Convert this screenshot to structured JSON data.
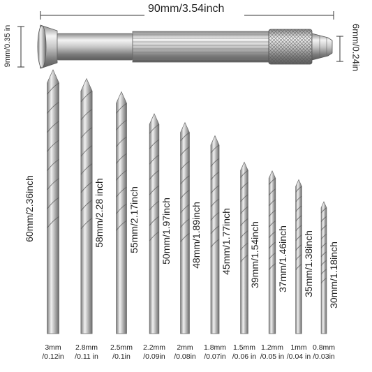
{
  "handle": {
    "length_label": "90mm/3.54inch",
    "end_diameter_label": "9mm/0.35 in",
    "tip_diameter_label": "6mm/0.24in"
  },
  "bits": [
    {
      "length": "60mm/2.36inch",
      "dia_mm": "3mm",
      "dia_in": "/0.12in",
      "length_mm": 60,
      "dia_value_mm": 3.0
    },
    {
      "length": "58mm/2.28 inch",
      "dia_mm": "2.8mm",
      "dia_in": "/0.11 in",
      "length_mm": 58,
      "dia_value_mm": 2.8
    },
    {
      "length": "55mm/2.17inch",
      "dia_mm": "2.5mm",
      "dia_in": "/0.1in",
      "length_mm": 55,
      "dia_value_mm": 2.5
    },
    {
      "length": "50mm/1.97inch",
      "dia_mm": "2.2mm",
      "dia_in": "/0.09in",
      "length_mm": 50,
      "dia_value_mm": 2.2
    },
    {
      "length": "48mm/1.89inch",
      "dia_mm": "2mm",
      "dia_in": "/0.08in",
      "length_mm": 48,
      "dia_value_mm": 2.0
    },
    {
      "length": "45mm/1.77inch",
      "dia_mm": "1.8mm",
      "dia_in": "/0.07in",
      "length_mm": 45,
      "dia_value_mm": 1.8
    },
    {
      "length": "39mm/1.54inch",
      "dia_mm": "1.5mm",
      "dia_in": "/0.06 in",
      "length_mm": 39,
      "dia_value_mm": 1.5
    },
    {
      "length": "37mm/1.46inch",
      "dia_mm": "1.2mm",
      "dia_in": "/0.05 in",
      "length_mm": 37,
      "dia_value_mm": 1.2
    },
    {
      "length": "35mm/1.38inch",
      "dia_mm": "1mm",
      "dia_in": "/0.04 in",
      "length_mm": 35,
      "dia_value_mm": 1.0
    },
    {
      "length": "30mm/1.18inch",
      "dia_mm": "0.8mm",
      "dia_in": "/0.03in",
      "length_mm": 30,
      "dia_value_mm": 0.8
    }
  ],
  "colors": {
    "steel_light": "#f2f2f2",
    "steel_mid": "#b9b9b9",
    "steel_dark": "#6f6f6f",
    "dimension_line": "#333333"
  }
}
